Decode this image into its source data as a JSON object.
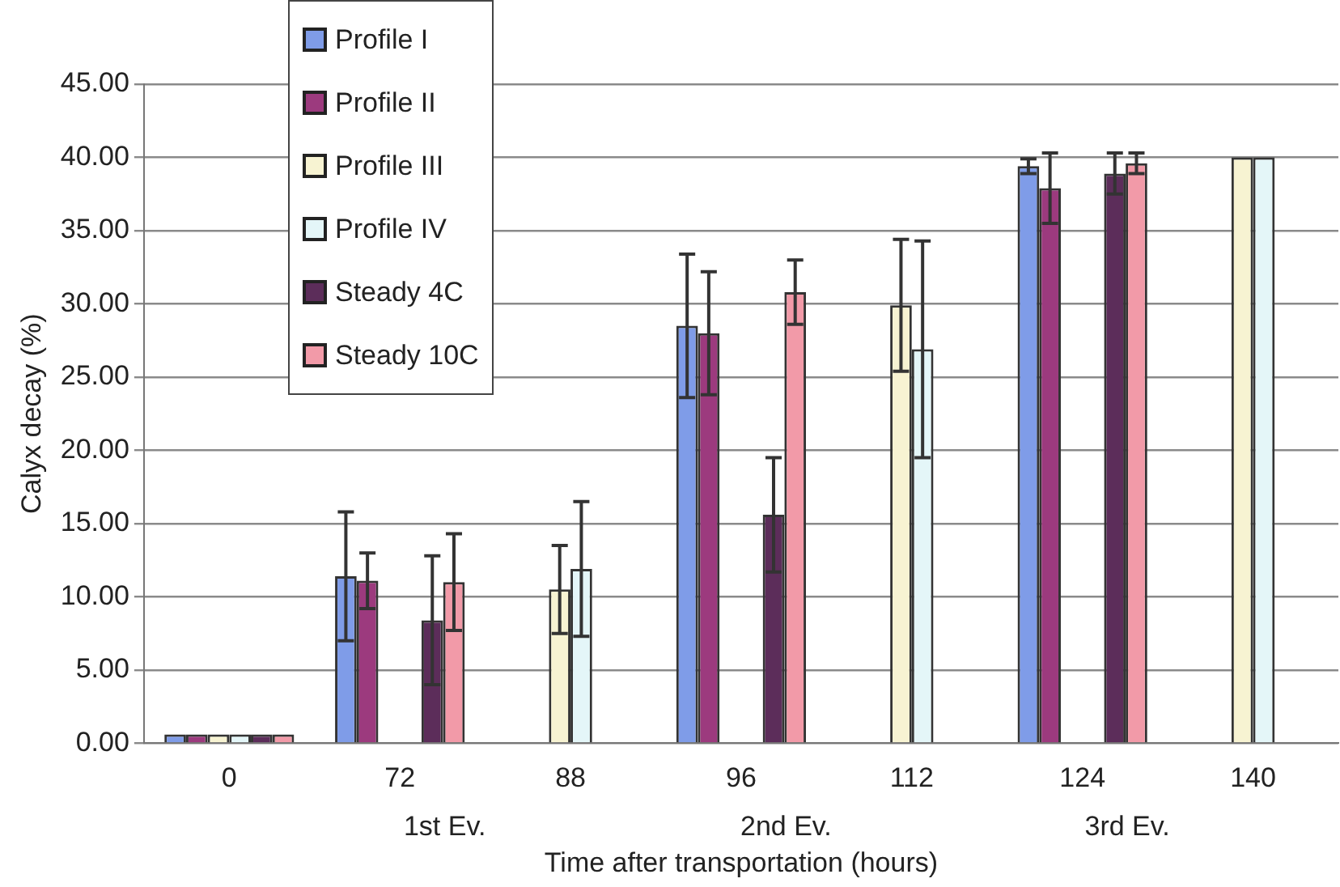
{
  "chart_data": {
    "type": "bar",
    "xlabel": "Time after transportation (hours)",
    "ylabel": "Calyx decay (%)",
    "categories": [
      "0",
      "72",
      "88",
      "96",
      "112",
      "124",
      "140"
    ],
    "series": [
      {
        "name": "Profile I",
        "color": "#7f9ce8",
        "values": [
          0.6,
          11.4,
          null,
          28.5,
          null,
          39.4,
          null
        ],
        "errors": [
          null,
          4.4,
          null,
          4.9,
          null,
          0.5,
          null
        ]
      },
      {
        "name": "Profile II",
        "color": "#9c3a7e",
        "values": [
          0.6,
          11.1,
          null,
          28.0,
          null,
          37.9,
          null
        ],
        "errors": [
          null,
          1.9,
          null,
          4.2,
          null,
          2.4,
          null
        ]
      },
      {
        "name": "Profile III",
        "color": "#f7f3d2",
        "values": [
          0.6,
          null,
          10.5,
          null,
          29.9,
          null,
          40.0
        ],
        "errors": [
          null,
          null,
          3.0,
          null,
          4.5,
          null,
          null
        ]
      },
      {
        "name": "Profile IV",
        "color": "#e4f6f8",
        "values": [
          0.6,
          null,
          11.9,
          null,
          26.9,
          null,
          40.0
        ],
        "errors": [
          null,
          null,
          4.6,
          null,
          7.4,
          null,
          null
        ]
      },
      {
        "name": "Steady 4C",
        "color": "#5c2d5a",
        "values": [
          0.6,
          8.4,
          null,
          15.6,
          null,
          38.9,
          null
        ],
        "errors": [
          null,
          4.4,
          null,
          3.9,
          null,
          1.4,
          null
        ]
      },
      {
        "name": "Steady 10C",
        "color": "#f29aa8",
        "values": [
          0.6,
          11.0,
          null,
          30.8,
          null,
          39.6,
          null
        ],
        "errors": [
          null,
          3.3,
          null,
          2.2,
          null,
          0.7,
          null
        ]
      }
    ],
    "ylim": [
      0,
      45
    ],
    "yticks": [
      {
        "value": 0,
        "label": "0.00"
      },
      {
        "value": 5,
        "label": "5.00"
      },
      {
        "value": 10,
        "label": "10.00"
      },
      {
        "value": 15,
        "label": "15.00"
      },
      {
        "value": 20,
        "label": "20.00"
      },
      {
        "value": 25,
        "label": "25.00"
      },
      {
        "value": 30,
        "label": "30.00"
      },
      {
        "value": 35,
        "label": "35.00"
      },
      {
        "value": 40,
        "label": "40.00"
      },
      {
        "value": 45,
        "label": "45.00"
      }
    ],
    "annotations": [
      "1st Ev.",
      "2nd Ev.",
      "3rd Ev."
    ],
    "grid": "y",
    "legend": "top left"
  }
}
